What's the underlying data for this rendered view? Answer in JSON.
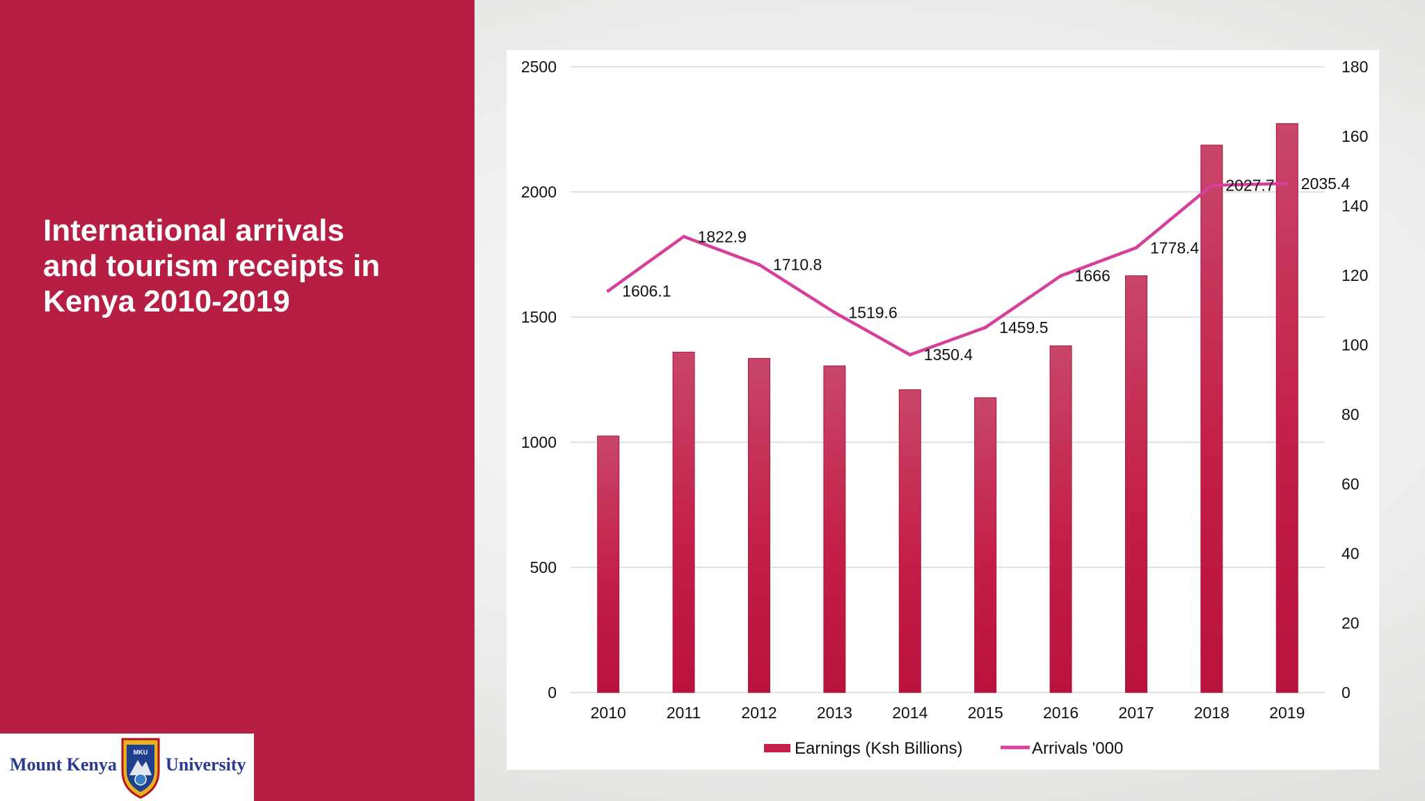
{
  "slide": {
    "title_line1": "International arrivals",
    "title_line2": "and tourism receipts in",
    "title_line3": "Kenya 2010-2019",
    "panel_color": "#b61e43"
  },
  "logo": {
    "left_text": "Mount Kenya",
    "right_text": "University",
    "crest_text": "MKU"
  },
  "chart_data": {
    "type": "bar",
    "categories": [
      "2010",
      "2011",
      "2012",
      "2013",
      "2014",
      "2015",
      "2016",
      "2017",
      "2018",
      "2019"
    ],
    "series": [
      {
        "name": "Earnings (Ksh Billions)",
        "type": "bar",
        "axis": "left",
        "color": "#c41f48",
        "values": [
          1025,
          1360,
          1335,
          1305,
          1210,
          1178,
          1385,
          1665,
          2187,
          2273
        ]
      },
      {
        "name": "Arrivals '000",
        "type": "line",
        "axis": "right",
        "color": "#d6409a",
        "values": [
          1606.1,
          1822.9,
          1710.8,
          1519.6,
          1350.4,
          1459.5,
          1666,
          1778.4,
          2027.7,
          2035.4
        ],
        "labels": [
          "1606.1",
          "1822.9",
          "1710.8",
          "1519.6",
          "1350.4",
          "1459.5",
          "1666",
          "1778.4",
          "2027.7",
          "2035.4"
        ]
      }
    ],
    "left_axis": {
      "ylim": [
        0,
        2500
      ],
      "ticks": [
        "0",
        "500",
        "1000",
        "1500",
        "2000",
        "2500"
      ]
    },
    "right_axis": {
      "ylim": [
        0,
        180
      ],
      "ticks": [
        "0",
        "20",
        "40",
        "60",
        "80",
        "100",
        "120",
        "140",
        "160",
        "180"
      ]
    },
    "grid": true,
    "legend_position": "bottom"
  }
}
